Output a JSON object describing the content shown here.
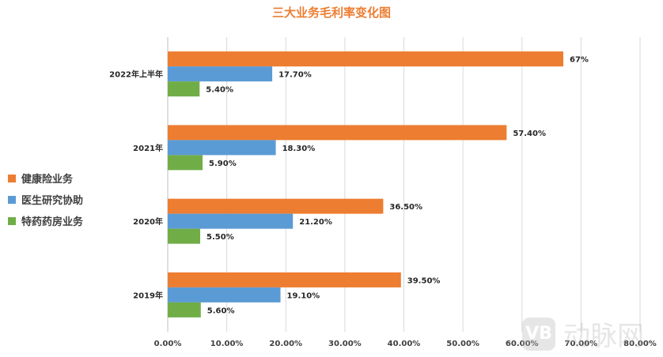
{
  "chart_data": {
    "type": "bar",
    "orientation": "horizontal",
    "title": "三大业务毛利率变化图",
    "categories": [
      "2022年上半年",
      "2021年",
      "2020年",
      "2019年"
    ],
    "series": [
      {
        "name": "健康险业务",
        "color": "#ED7D31",
        "values": [
          67,
          57.4,
          36.5,
          39.5
        ],
        "labels": [
          "67%",
          "57.40%",
          "36.50%",
          "39.50%"
        ]
      },
      {
        "name": "医生研究协助",
        "color": "#5B9BD5",
        "values": [
          17.7,
          18.3,
          21.2,
          19.1
        ],
        "labels": [
          "17.70%",
          "18.30%",
          "21.20%",
          "19.10%"
        ]
      },
      {
        "name": "特药药房业务",
        "color": "#70AD47",
        "values": [
          5.4,
          5.9,
          5.5,
          5.6
        ],
        "labels": [
          "5.40%",
          "5.90%",
          "5.50%",
          "5.60%"
        ]
      }
    ],
    "xlim": [
      0,
      80
    ],
    "xticks": [
      0,
      10,
      20,
      30,
      40,
      50,
      60,
      70,
      80
    ],
    "xtick_labels": [
      "0.00%",
      "10.00%",
      "20.00%",
      "30.00%",
      "40.00%",
      "50.00%",
      "60.00%",
      "70.00%",
      "80.00%"
    ],
    "grid": true,
    "legend_position": "left"
  },
  "watermark": {
    "logo_text": "VB",
    "text": "动脉网"
  }
}
